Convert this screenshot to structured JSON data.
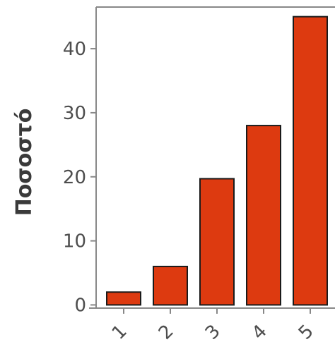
{
  "chart_data": {
    "type": "bar",
    "categories": [
      "1",
      "2",
      "3",
      "4",
      "5"
    ],
    "values": [
      2,
      6,
      19.7,
      28,
      45
    ],
    "title": "",
    "xlabel": "",
    "ylabel": "Ποσοστό",
    "ylim": [
      -0.5,
      46.5
    ],
    "yticks": [
      0,
      10,
      20,
      30,
      40
    ],
    "ytick_labels": [
      "0",
      "10",
      "20",
      "30",
      "40"
    ],
    "bar_color": "#dd3a10",
    "bar_edge_color": "#1a1a1a",
    "axis_color": "#888888",
    "grid": false,
    "legend": "none"
  }
}
